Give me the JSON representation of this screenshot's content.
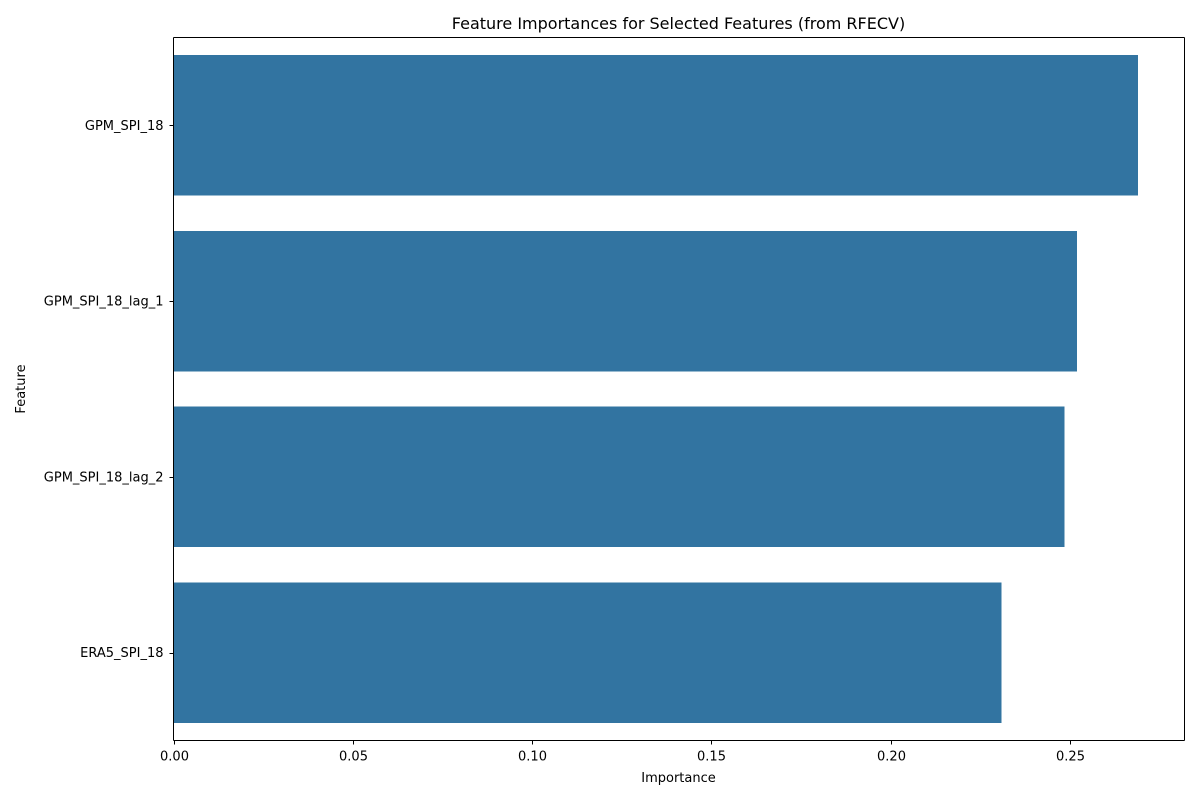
{
  "chart_data": {
    "type": "bar",
    "orientation": "horizontal",
    "title": "Feature Importances for Selected Features (from RFECV)",
    "xlabel": "Importance",
    "ylabel": "Feature",
    "categories": [
      "GPM_SPI_18",
      "GPM_SPI_18_lag_1",
      "GPM_SPI_18_lag_2",
      "ERA5_SPI_18"
    ],
    "values": [
      0.269,
      0.252,
      0.2485,
      0.231
    ],
    "xlim": [
      0,
      0.282
    ],
    "xticks": [
      0.0,
      0.05,
      0.1,
      0.15,
      0.2,
      0.25
    ],
    "xtick_labels": [
      "0.00",
      "0.05",
      "0.10",
      "0.15",
      "0.20",
      "0.25"
    ],
    "grid": false,
    "bar_color": "#3274a1"
  }
}
